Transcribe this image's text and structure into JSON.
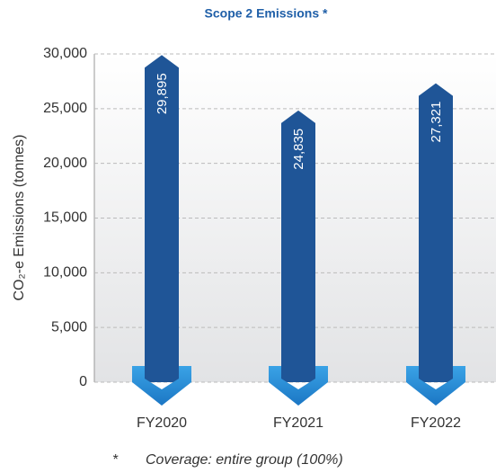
{
  "chart_data": {
    "type": "bar",
    "title": "Scope 2 Emissions *",
    "ylabel": "CO₂-e Emissions (tonnes)",
    "categories": [
      "FY2020",
      "FY2021",
      "FY2022"
    ],
    "values": [
      29895,
      24835,
      27321
    ],
    "value_labels": [
      "29,895",
      "24,835",
      "27,321"
    ],
    "color": "#1f5597",
    "ylim": [
      0,
      30000
    ],
    "yticks": [
      0,
      {
        "value": 5000,
        "label": "5,000"
      },
      {
        "value": 10000,
        "label": "10,000"
      },
      {
        "value": 15000,
        "label": "15,000"
      },
      {
        "value": 20000,
        "label": "20,000"
      },
      {
        "value": 25000,
        "label": "25,000"
      },
      {
        "value": 30000,
        "label": "30,000"
      }
    ],
    "grid": true,
    "annotations": [
      "*",
      "Coverage: entire group (100%)"
    ]
  }
}
